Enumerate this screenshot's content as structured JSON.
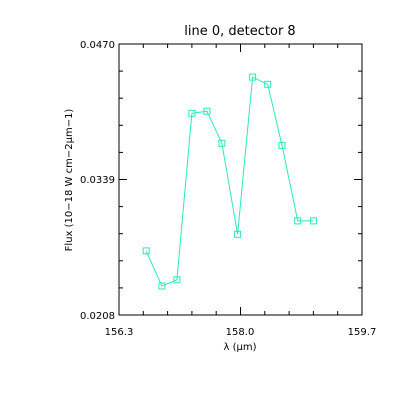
{
  "chart_data": {
    "type": "line",
    "title": "line 0, detector 8",
    "xlabel": "λ (μm)",
    "ylabel": "Flux (10−18 W cm−2μm−1)",
    "xlim": [
      156.3,
      159.7
    ],
    "ylim": [
      0.0208,
      0.047
    ],
    "x_ticks": [
      "156.3",
      "158.0",
      "159.7"
    ],
    "y_ticks": [
      "0.0208",
      "0.0339",
      "0.0470"
    ],
    "grid": false,
    "marker": "square",
    "series": [
      {
        "color": "#2ee6c0",
        "x": [
          156.68,
          156.9,
          157.11,
          157.32,
          157.53,
          157.74,
          157.96,
          158.17,
          158.38,
          158.58,
          158.8,
          159.02
        ],
        "y": [
          0.027,
          0.0236,
          0.0242,
          0.0403,
          0.0405,
          0.0374,
          0.0286,
          0.0438,
          0.0431,
          0.0372,
          0.0299,
          0.0299
        ]
      }
    ]
  }
}
